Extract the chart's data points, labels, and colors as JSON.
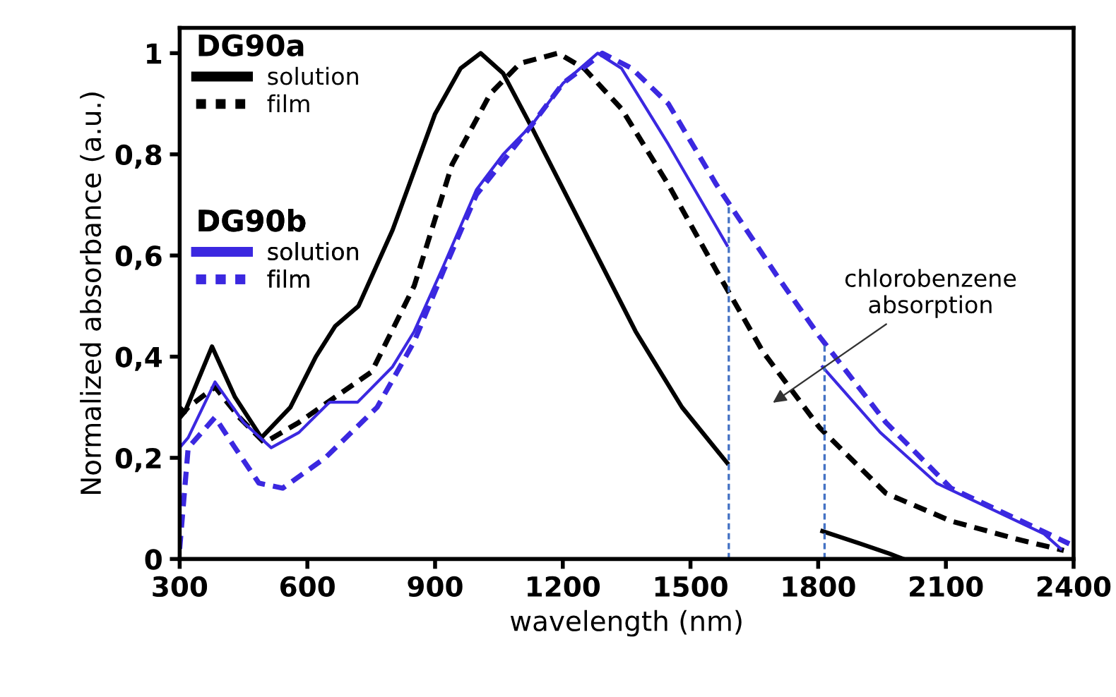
{
  "chart_data": {
    "type": "line",
    "xlabel": "wavelength (nm)",
    "ylabel": "Normalized absorbance (a.u.)",
    "legend_title": [
      "DG90a",
      "DG90b"
    ],
    "legend": "top left",
    "grid": false,
    "marker": "none",
    "xlim": [
      300,
      2400
    ],
    "xticks": [
      300,
      600,
      900,
      1200,
      1500,
      1800,
      2100,
      2400
    ],
    "ylim": [
      0,
      1.05
    ],
    "yticks": [
      0,
      {
        "value": 0.2,
        "label": "0,2"
      },
      {
        "value": 0.4,
        "label": "0,4"
      },
      {
        "value": 0.6,
        "label": "0,6"
      },
      {
        "value": 0.8,
        "label": "0,8"
      },
      1
    ],
    "series": [
      {
        "name": "solution",
        "color": "#000000",
        "line_style": "solid",
        "x": [
          300,
          312,
          376,
          430,
          492,
          560,
          620,
          665,
          720,
          800,
          900,
          960,
          1007,
          1060,
          1129,
          1250,
          1371,
          1480,
          1586,
          1700,
          1810,
          1900,
          1969,
          2000
        ],
        "values": [
          0.3,
          0.29,
          0.42,
          0.32,
          0.24,
          0.3,
          0.4,
          0.46,
          0.5,
          0.65,
          0.88,
          0.97,
          1.0,
          0.96,
          0.85,
          0.65,
          0.45,
          0.3,
          0.19,
          null,
          0.055,
          0.03,
          0.01,
          0.0
        ]
      },
      {
        "name": "film",
        "color": "#000000",
        "line_style": "dashed",
        "x": [
          300,
          320,
          383,
          440,
          499,
          580,
          665,
          751,
          851,
          940,
          1030,
          1100,
          1189,
          1250,
          1305,
          1338,
          1448,
          1561,
          1670,
          1803,
          1959,
          2112,
          2277,
          2377
        ],
        "values": [
          0.28,
          0.3,
          0.34,
          0.28,
          0.23,
          0.27,
          0.32,
          0.37,
          0.54,
          0.78,
          0.92,
          0.98,
          1.0,
          0.97,
          0.92,
          0.89,
          0.74,
          0.57,
          0.41,
          0.26,
          0.13,
          0.075,
          0.037,
          0.017
        ]
      },
      {
        "name": "solution",
        "color": "#3b28e0",
        "line_style": "solid",
        "x": [
          300,
          320,
          383,
          450,
          515,
          580,
          652,
          718,
          800,
          851,
          920,
          997,
          1060,
          1129,
          1200,
          1282,
          1338,
          1448,
          1586,
          1700,
          1810,
          1946,
          2078,
          2244,
          2330,
          2370
        ],
        "values": [
          0.22,
          0.24,
          0.35,
          0.27,
          0.22,
          0.25,
          0.31,
          0.31,
          0.38,
          0.45,
          0.58,
          0.73,
          0.8,
          0.86,
          0.94,
          1.0,
          0.97,
          0.82,
          0.62,
          null,
          0.38,
          0.25,
          0.15,
          0.084,
          0.05,
          0.02
        ]
      },
      {
        "name": "film",
        "color": "#3b28e0",
        "line_style": "dashed",
        "x": [
          300,
          320,
          383,
          430,
          486,
          542,
          642,
          764,
          851,
          920,
          997,
          1129,
          1200,
          1293,
          1362,
          1448,
          1561,
          1703,
          1803,
          1959,
          2112,
          2277,
          2390
        ],
        "values": [
          0.02,
          0.22,
          0.28,
          0.22,
          0.15,
          0.14,
          0.2,
          0.3,
          0.43,
          0.57,
          0.72,
          0.86,
          0.94,
          1.0,
          0.97,
          0.9,
          0.74,
          0.56,
          0.44,
          0.27,
          0.14,
          0.075,
          0.03
        ]
      }
    ],
    "ref_lines": [
      {
        "axis": "x",
        "value": 1590,
        "color": "#4472c4",
        "line_style": "dashed"
      },
      {
        "axis": "x",
        "value": 1815,
        "color": "#4472c4",
        "line_style": "dashed"
      }
    ],
    "annotations": [
      "chlorobenzene\nabsorption"
    ]
  }
}
